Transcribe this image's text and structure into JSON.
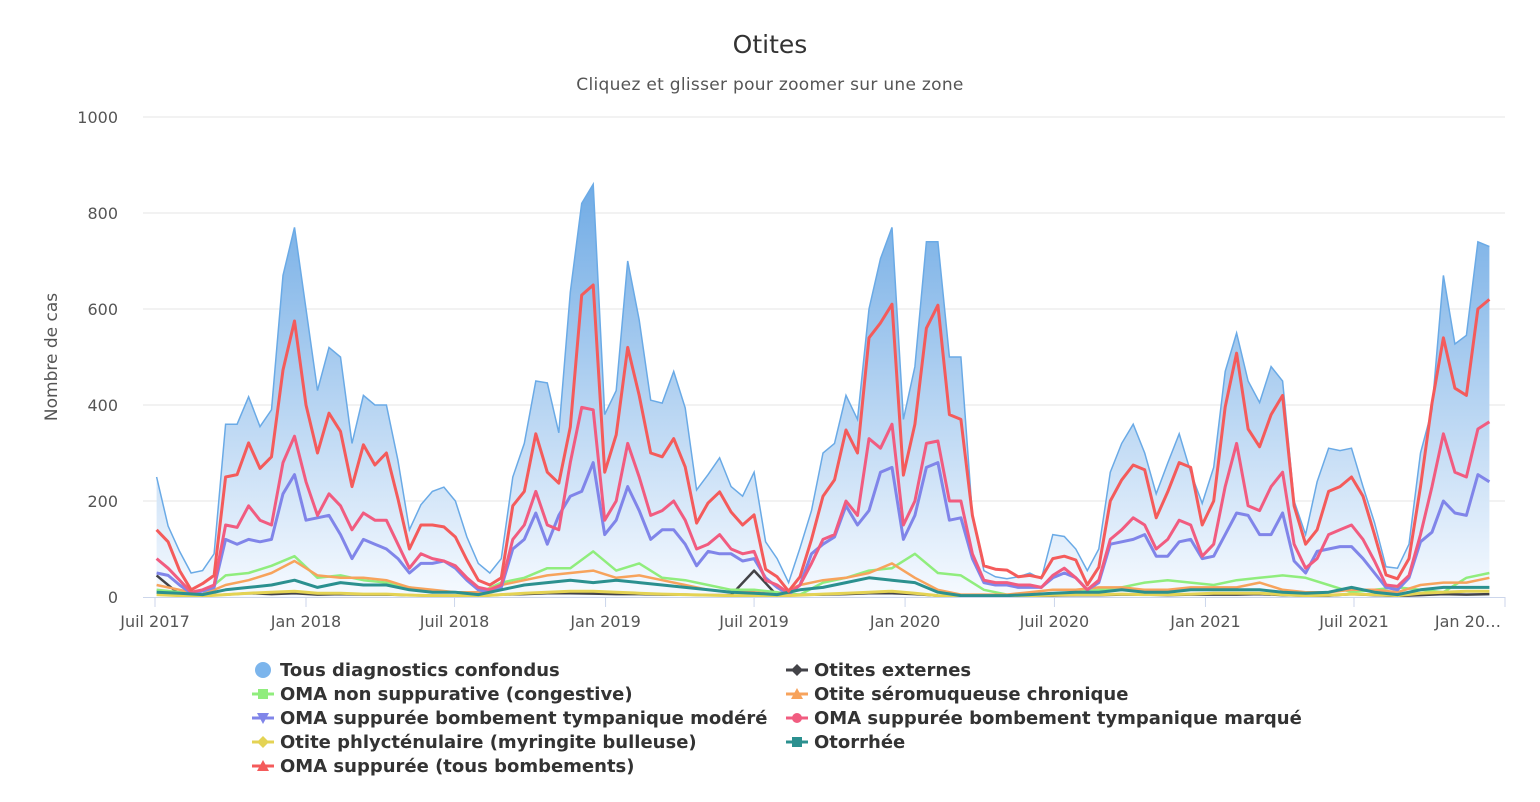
{
  "chart_data": {
    "type": "area+line",
    "title": "Otites",
    "subtitle": "Cliquez et glisser pour zoomer sur une zone",
    "ylabel": "Nombre de cas",
    "xlabel": "",
    "ylim": [
      0,
      1000
    ],
    "yticks": [
      0,
      200,
      400,
      600,
      800,
      1000
    ],
    "xticks": [
      {
        "date": "2017-07-01",
        "label": "Juil 2017"
      },
      {
        "date": "2018-01-01",
        "label": "Jan 2018"
      },
      {
        "date": "2018-07-01",
        "label": "Juil 2018"
      },
      {
        "date": "2019-01-01",
        "label": "Jan 2019"
      },
      {
        "date": "2019-07-01",
        "label": "Juil 2019"
      },
      {
        "date": "2020-01-01",
        "label": "Jan 2020"
      },
      {
        "date": "2020-07-01",
        "label": "Juil 2020"
      },
      {
        "date": "2021-01-01",
        "label": "Jan 2021"
      },
      {
        "date": "2021-07-01",
        "label": "Juil 2021"
      },
      {
        "date": "2022-01-01",
        "label": "Jan 20…"
      }
    ],
    "xrange": [
      "2017-07-01",
      "2022-01-01"
    ],
    "grid": true,
    "legend_position": "bottom",
    "x_start": "2017-07-03",
    "series": [
      {
        "name": "Tous diagnostics confondus",
        "type": "area",
        "color": "#7cb5ec",
        "marker": "circle",
        "step_days": 14,
        "values": [
          250,
          148,
          95,
          50,
          55,
          90,
          360,
          360,
          417,
          355,
          390,
          670,
          770,
          600,
          430,
          520,
          500,
          320,
          420,
          400,
          400,
          285,
          140,
          192,
          220,
          229,
          200,
          125,
          70,
          50,
          80,
          250,
          320,
          450,
          446,
          342,
          635,
          820,
          860,
          380,
          430,
          700,
          577,
          410,
          404,
          470,
          394,
          223,
          255,
          290,
          230,
          210,
          260,
          115,
          80,
          30,
          102,
          180,
          300,
          320,
          420,
          370,
          600,
          705,
          770,
          370,
          480,
          740,
          740,
          500,
          500,
          170,
          55,
          42,
          38,
          42,
          50,
          38,
          130,
          126,
          100,
          55,
          100,
          260,
          320,
          360,
          300,
          215,
          279,
          340,
          260,
          195,
          270,
          470,
          550,
          450,
          405,
          480,
          450,
          200,
          130,
          240,
          310,
          305,
          310,
          230,
          155,
          63,
          60,
          110,
          300,
          390,
          670,
          527,
          545,
          740,
          730
        ]
      },
      {
        "name": "Otites externes",
        "type": "line",
        "color": "#434348",
        "marker": "diamond",
        "step_days": 28,
        "values": [
          45,
          5,
          3,
          5,
          8,
          6,
          8,
          5,
          6,
          5,
          5,
          4,
          3,
          3,
          2,
          5,
          6,
          8,
          8,
          7,
          6,
          6,
          5,
          5,
          4,
          4,
          55,
          3,
          5,
          5,
          6,
          8,
          8,
          6,
          3,
          2,
          2,
          2,
          3,
          3,
          4,
          4,
          5,
          5,
          4,
          5,
          5,
          5,
          6,
          4,
          3,
          3,
          6,
          4,
          2,
          4,
          6,
          5,
          6
        ]
      },
      {
        "name": "OMA non suppurative (congestive)",
        "type": "line",
        "color": "#90ed7d",
        "marker": "square",
        "step_days": 28,
        "values": [
          15,
          10,
          5,
          45,
          50,
          65,
          85,
          40,
          45,
          35,
          30,
          20,
          12,
          10,
          8,
          30,
          40,
          60,
          60,
          95,
          55,
          70,
          40,
          35,
          25,
          15,
          15,
          10,
          5,
          30,
          40,
          55,
          60,
          90,
          50,
          45,
          15,
          5,
          5,
          5,
          10,
          15,
          20,
          30,
          35,
          30,
          25,
          35,
          40,
          45,
          40,
          25,
          10,
          15,
          20,
          15,
          10,
          40,
          50
        ]
      },
      {
        "name": "Otite séromuqueuse chronique",
        "type": "line",
        "color": "#f7a35c",
        "marker": "triangle",
        "step_days": 28,
        "values": [
          25,
          15,
          5,
          25,
          35,
          50,
          75,
          45,
          40,
          40,
          35,
          20,
          15,
          10,
          10,
          25,
          35,
          45,
          50,
          55,
          40,
          45,
          35,
          25,
          15,
          10,
          10,
          5,
          25,
          35,
          40,
          50,
          70,
          40,
          15,
          5,
          5,
          5,
          10,
          15,
          15,
          20,
          20,
          15,
          15,
          20,
          20,
          20,
          30,
          15,
          10,
          10,
          15,
          15,
          10,
          25,
          30,
          30,
          40
        ]
      },
      {
        "name": "OMA suppurée bombement tympanique modéré",
        "type": "line",
        "color": "#8085e9",
        "marker": "triangle-down",
        "step_days": 14,
        "values": [
          50,
          45,
          25,
          8,
          12,
          20,
          120,
          110,
          120,
          115,
          120,
          215,
          255,
          160,
          165,
          170,
          130,
          80,
          120,
          110,
          100,
          80,
          50,
          70,
          70,
          75,
          60,
          35,
          15,
          10,
          20,
          100,
          120,
          175,
          110,
          170,
          210,
          220,
          280,
          130,
          160,
          230,
          180,
          120,
          140,
          140,
          110,
          65,
          95,
          90,
          90,
          75,
          80,
          40,
          20,
          5,
          25,
          90,
          110,
          125,
          190,
          150,
          180,
          260,
          270,
          120,
          170,
          270,
          280,
          160,
          165,
          80,
          30,
          25,
          25,
          20,
          20,
          20,
          40,
          50,
          40,
          15,
          30,
          110,
          115,
          120,
          130,
          85,
          85,
          115,
          120,
          80,
          85,
          130,
          175,
          170,
          130,
          130,
          175,
          75,
          50,
          95,
          100,
          105,
          105,
          80,
          50,
          20,
          15,
          40,
          115,
          135,
          200,
          175,
          170,
          255,
          240
        ]
      },
      {
        "name": "OMA suppurée bombement tympanique marqué",
        "type": "line",
        "color": "#f15c80",
        "marker": "circle",
        "step_days": 14,
        "values": [
          80,
          60,
          35,
          10,
          15,
          25,
          150,
          145,
          190,
          160,
          150,
          280,
          335,
          240,
          170,
          215,
          190,
          140,
          175,
          160,
          160,
          110,
          60,
          90,
          80,
          75,
          65,
          40,
          20,
          15,
          25,
          120,
          150,
          220,
          150,
          140,
          280,
          395,
          390,
          160,
          200,
          320,
          250,
          170,
          180,
          200,
          160,
          100,
          110,
          130,
          100,
          90,
          95,
          35,
          25,
          8,
          25,
          70,
          120,
          130,
          200,
          170,
          330,
          310,
          360,
          150,
          200,
          320,
          325,
          200,
          200,
          90,
          35,
          30,
          30,
          25,
          25,
          20,
          45,
          60,
          40,
          15,
          35,
          120,
          140,
          165,
          150,
          100,
          120,
          160,
          150,
          85,
          110,
          230,
          320,
          190,
          180,
          230,
          260,
          110,
          60,
          80,
          130,
          140,
          150,
          120,
          75,
          25,
          22,
          45,
          130,
          230,
          340,
          260,
          250,
          350,
          365
        ]
      },
      {
        "name": "Otite phlycténulaire (myringite bulleuse)",
        "type": "line",
        "color": "#e4d354",
        "marker": "diamond",
        "step_days": 28,
        "values": [
          5,
          3,
          2,
          5,
          8,
          10,
          12,
          8,
          8,
          6,
          6,
          4,
          3,
          3,
          2,
          5,
          8,
          10,
          12,
          12,
          10,
          8,
          6,
          5,
          4,
          3,
          3,
          2,
          4,
          6,
          8,
          10,
          12,
          8,
          3,
          2,
          2,
          2,
          3,
          4,
          5,
          5,
          6,
          5,
          5,
          6,
          8,
          8,
          8,
          5,
          3,
          4,
          6,
          5,
          3,
          8,
          10,
          12,
          12
        ]
      },
      {
        "name": "Otorrhée",
        "type": "line",
        "color": "#2b908f",
        "marker": "square",
        "step_days": 28,
        "values": [
          10,
          8,
          5,
          15,
          20,
          25,
          35,
          20,
          30,
          25,
          25,
          15,
          10,
          10,
          5,
          15,
          25,
          30,
          35,
          30,
          35,
          30,
          25,
          20,
          15,
          10,
          8,
          5,
          15,
          20,
          30,
          40,
          35,
          30,
          10,
          3,
          3,
          3,
          5,
          8,
          10,
          10,
          15,
          10,
          10,
          15,
          15,
          15,
          15,
          10,
          8,
          10,
          20,
          10,
          5,
          15,
          20,
          20,
          20
        ]
      },
      {
        "name": "OMA suppurée (tous bombements)",
        "type": "line",
        "color": "#f45b5b",
        "marker": "triangle",
        "step_days": 14,
        "values": [
          140,
          115,
          55,
          15,
          28,
          45,
          250,
          255,
          321,
          268,
          292,
          473,
          575,
          400,
          300,
          383,
          345,
          230,
          317,
          275,
          300,
          205,
          100,
          150,
          150,
          146,
          125,
          77,
          35,
          25,
          40,
          190,
          220,
          340,
          260,
          237,
          354,
          629,
          650,
          260,
          338,
          520,
          420,
          300,
          292,
          330,
          271,
          154,
          196,
          219,
          177,
          150,
          171,
          58,
          42,
          12,
          42,
          120,
          210,
          244,
          348,
          300,
          540,
          571,
          610,
          254,
          360,
          560,
          608,
          380,
          370,
          170,
          65,
          58,
          56,
          42,
          45,
          40,
          80,
          85,
          77,
          25,
          62,
          200,
          244,
          275,
          265,
          165,
          219,
          280,
          270,
          150,
          200,
          396,
          508,
          350,
          313,
          380,
          420,
          190,
          110,
          140,
          220,
          230,
          250,
          210,
          130,
          46,
          38,
          80,
          230,
          404,
          540,
          435,
          420,
          600,
          620
        ]
      }
    ]
  },
  "legend": {
    "column1": [
      1,
      3,
      5,
      7,
      9
    ],
    "items": [
      "Tous diagnostics confondus",
      "Otites externes",
      "OMA non suppurative (congestive)",
      "Otite séromuqueuse chronique",
      "OMA suppurée bombement tympanique modéré",
      "OMA suppurée bombement tympanique marqué",
      "Otite phlycténulaire (myringite bulleuse)",
      "Otorrhée",
      "OMA suppurée (tous bombements)"
    ]
  }
}
